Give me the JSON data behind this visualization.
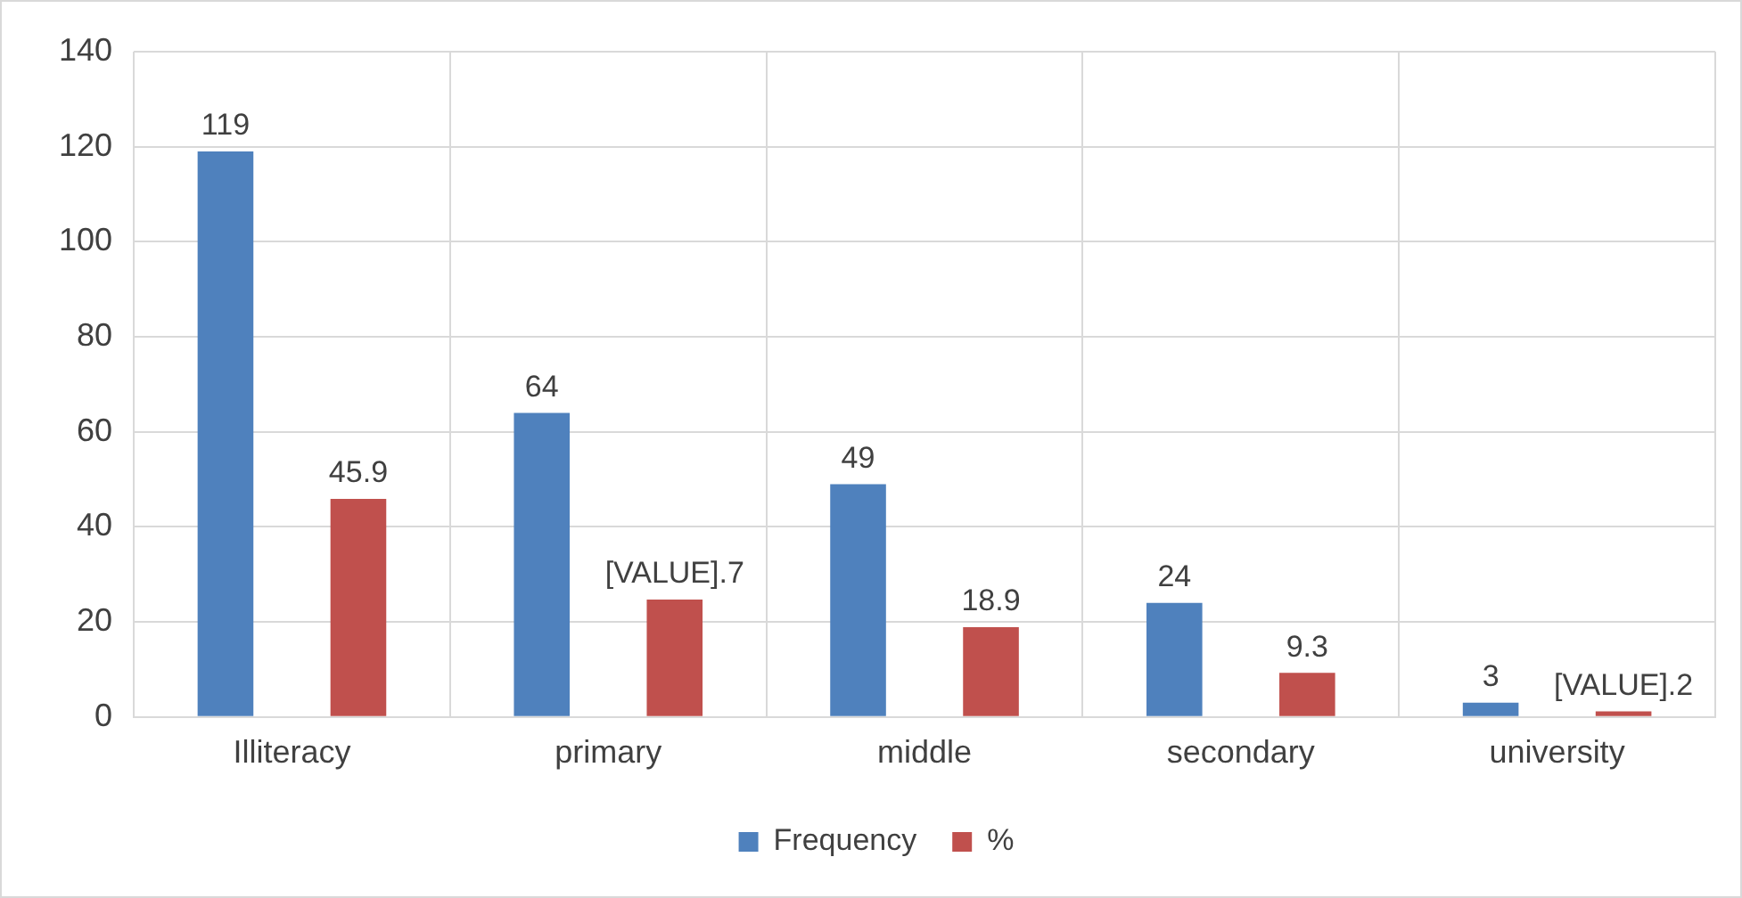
{
  "chart_data": {
    "type": "bar",
    "categories": [
      "Illiteracy",
      "primary",
      "middle",
      "secondary",
      "university"
    ],
    "series": [
      {
        "name": "Frequency",
        "color": "#4f81bd",
        "values": [
          119,
          64,
          49,
          24,
          3
        ],
        "value_labels": [
          "119",
          "64",
          "49",
          "24",
          "3"
        ]
      },
      {
        "name": "%",
        "color": "#c0504d",
        "values": [
          45.9,
          24.7,
          18.9,
          9.3,
          1.2
        ],
        "value_labels": [
          "45.9",
          null,
          "18.9",
          "9.3",
          null
        ]
      }
    ],
    "annotations": [
      "[VALUE].7",
      "[VALUE].2"
    ],
    "ylim": [
      0,
      140
    ],
    "yticks": [
      0,
      20,
      40,
      60,
      80,
      100,
      120,
      140
    ],
    "grid": true,
    "legend": "bottom"
  }
}
